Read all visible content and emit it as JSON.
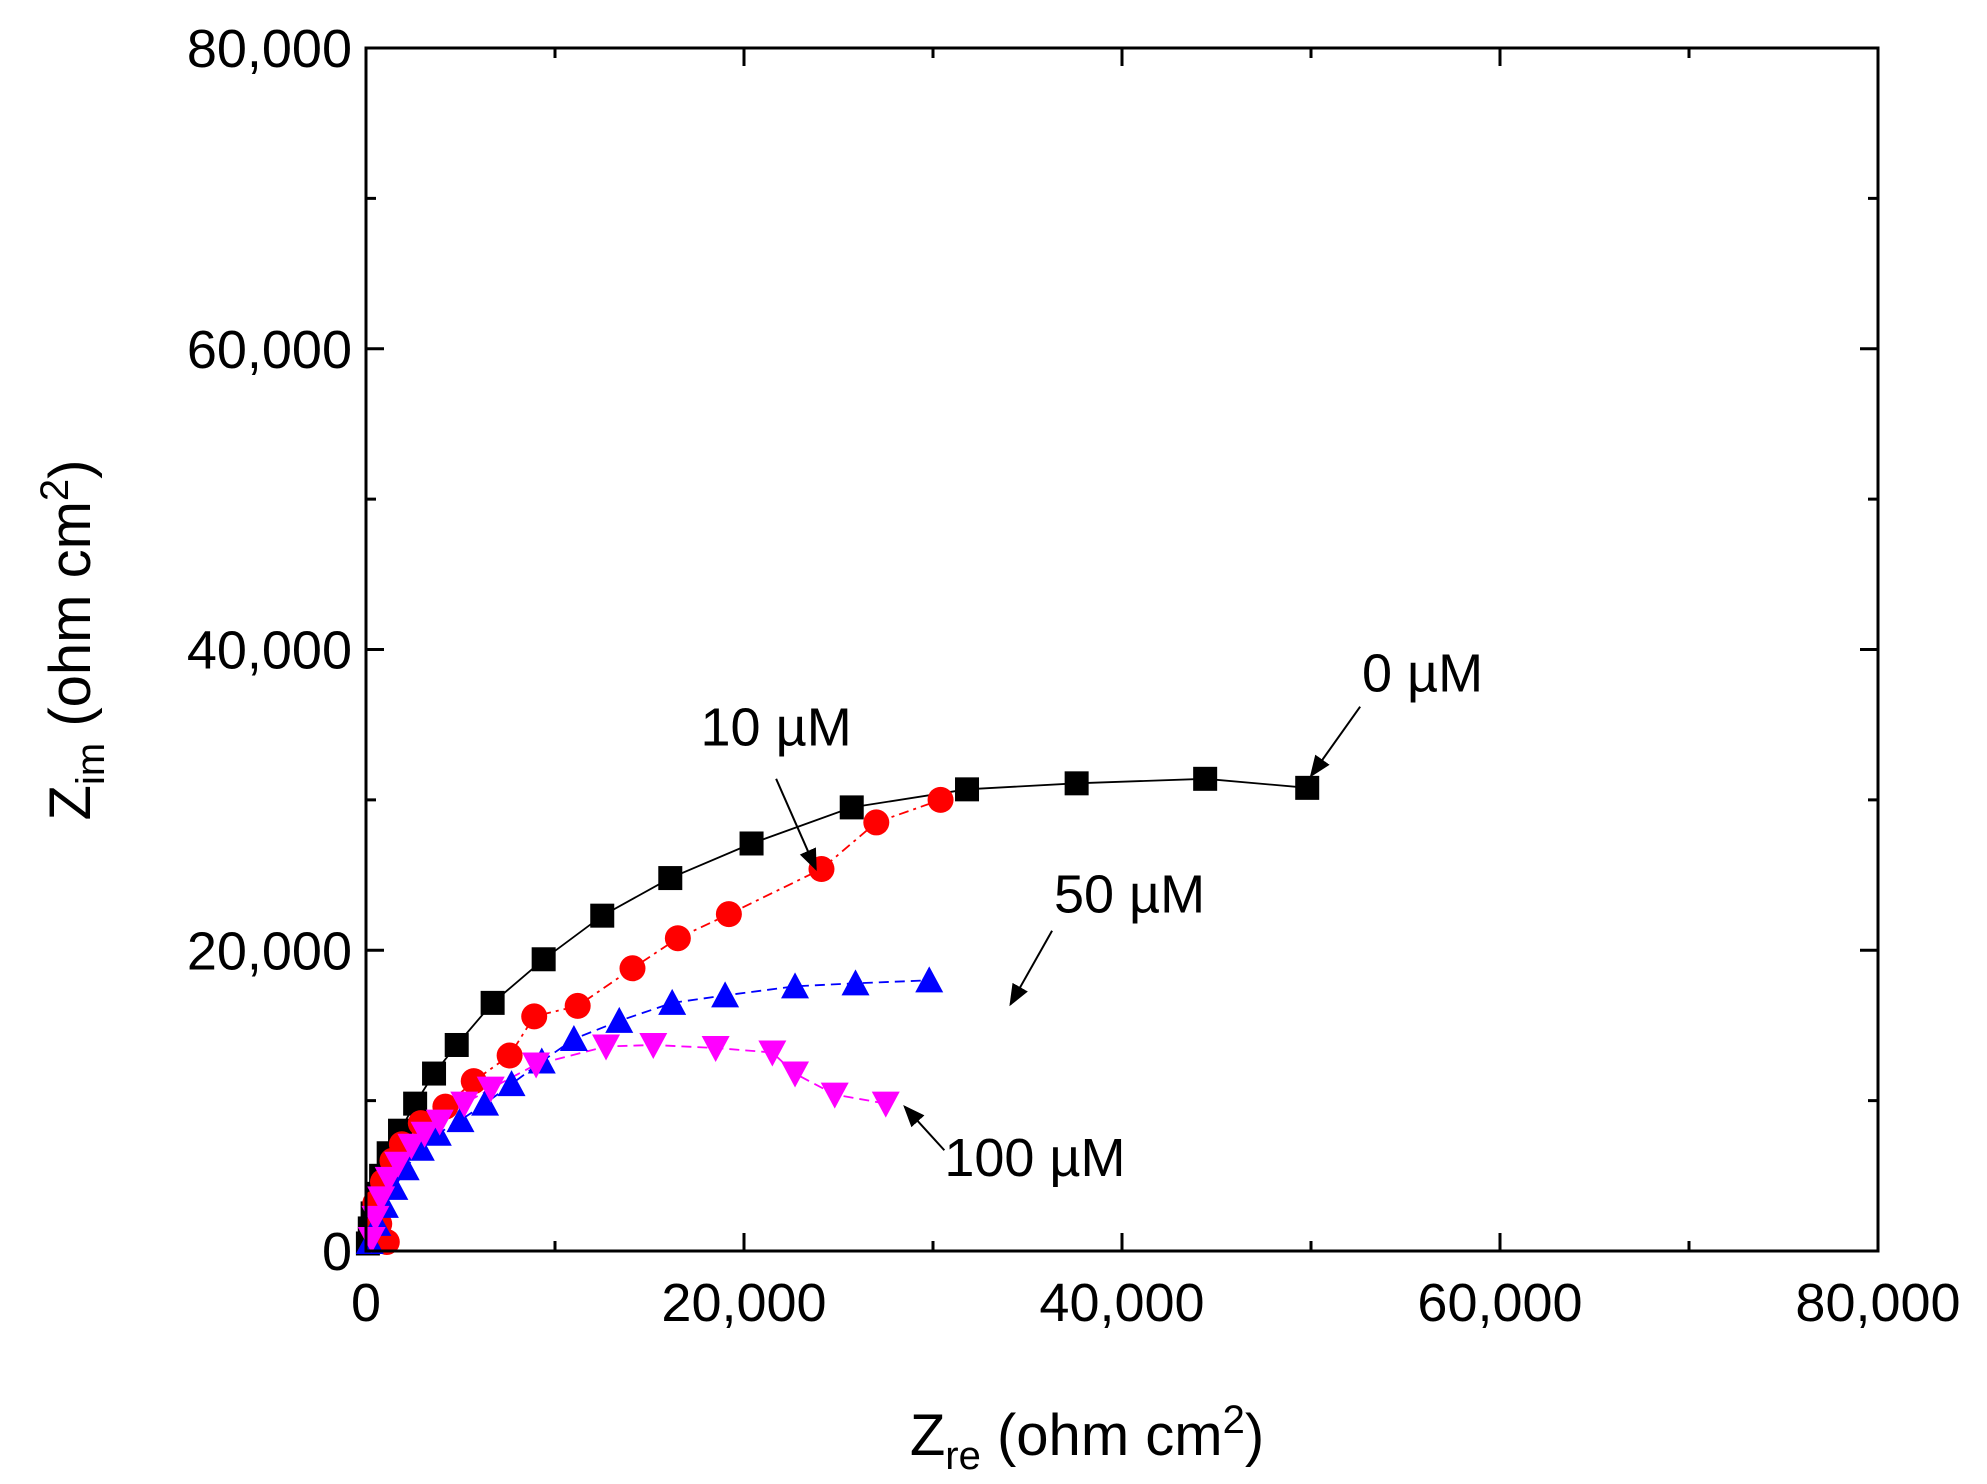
{
  "chart_data": {
    "type": "scatter",
    "xlabel": {
      "main": "Z",
      "sub": "re",
      "unit": " (ohm cm",
      "sup": "2",
      "close": ")"
    },
    "ylabel": {
      "main": "Z",
      "sub": "im",
      "unit": " (ohm cm",
      "sup": "2",
      "close": ")"
    },
    "xlim": [
      0,
      80000
    ],
    "ylim": [
      0,
      80000
    ],
    "xticks": [
      0,
      20000,
      40000,
      60000,
      80000
    ],
    "yticks": [
      0,
      20000,
      40000,
      60000,
      80000
    ],
    "xtick_labels": [
      "0",
      "20,000",
      "40,000",
      "60,000",
      "80,000"
    ],
    "ytick_labels": [
      "0",
      "20,000",
      "40,000",
      "60,000",
      "80,000"
    ],
    "grid": false,
    "series": [
      {
        "name": "0 µM",
        "color": "#000000",
        "marker": "square",
        "points": [
          [
            100,
            500
          ],
          [
            200,
            1500
          ],
          [
            350,
            2500
          ],
          [
            600,
            3800
          ],
          [
            800,
            5000
          ],
          [
            1200,
            6500
          ],
          [
            1800,
            8000
          ],
          [
            2600,
            9800
          ],
          [
            3600,
            11800
          ],
          [
            4800,
            13700
          ],
          [
            6700,
            16500
          ],
          [
            9400,
            19400
          ],
          [
            12500,
            22300
          ],
          [
            16100,
            24800
          ],
          [
            20400,
            27100
          ],
          [
            25700,
            29500
          ],
          [
            31800,
            30700
          ],
          [
            37600,
            31100
          ],
          [
            44400,
            31400
          ],
          [
            49800,
            30800
          ]
        ]
      },
      {
        "name": "10 µM",
        "color": "#ff0000",
        "marker": "circle",
        "points": [
          [
            1100,
            600
          ],
          [
            700,
            1800
          ],
          [
            500,
            3200
          ],
          [
            900,
            4600
          ],
          [
            1400,
            6000
          ],
          [
            1900,
            7100
          ],
          [
            2900,
            8500
          ],
          [
            4200,
            9600
          ],
          [
            5700,
            11300
          ],
          [
            7600,
            13000
          ],
          [
            8900,
            15600
          ],
          [
            11200,
            16300
          ],
          [
            14100,
            18800
          ],
          [
            16500,
            20800
          ],
          [
            19200,
            22400
          ],
          [
            24100,
            25400
          ],
          [
            27000,
            28500
          ],
          [
            30400,
            30000
          ]
        ]
      },
      {
        "name": "50 µM",
        "color": "#0000ff",
        "marker": "triangle-up",
        "points": [
          [
            200,
            600
          ],
          [
            600,
            1800
          ],
          [
            1000,
            3000
          ],
          [
            1500,
            4200
          ],
          [
            2100,
            5500
          ],
          [
            2900,
            6800
          ],
          [
            3800,
            7800
          ],
          [
            5000,
            8700
          ],
          [
            6300,
            9800
          ],
          [
            7700,
            11100
          ],
          [
            9300,
            12600
          ],
          [
            11000,
            14100
          ],
          [
            13400,
            15300
          ],
          [
            16200,
            16500
          ],
          [
            19000,
            17000
          ],
          [
            22700,
            17600
          ],
          [
            25900,
            17800
          ],
          [
            29800,
            18000
          ]
        ]
      },
      {
        "name": "100 µM",
        "color": "#ff00ff",
        "marker": "triangle-down",
        "points": [
          [
            300,
            800
          ],
          [
            500,
            2200
          ],
          [
            800,
            3500
          ],
          [
            1200,
            4800
          ],
          [
            1700,
            5800
          ],
          [
            2400,
            7000
          ],
          [
            3100,
            7800
          ],
          [
            3900,
            8600
          ],
          [
            5200,
            9800
          ],
          [
            6600,
            10800
          ],
          [
            9000,
            12400
          ],
          [
            12700,
            13600
          ],
          [
            15200,
            13700
          ],
          [
            18500,
            13500
          ],
          [
            21500,
            13200
          ],
          [
            22700,
            11800
          ],
          [
            24800,
            10400
          ],
          [
            27500,
            9800
          ]
        ]
      }
    ],
    "annotations": [
      {
        "text": "0 µM",
        "series": 0,
        "text_at": [
          52700,
          37200
        ],
        "arrow_from": [
          52600,
          36200
        ],
        "arrow_to": [
          50000,
          31600
        ]
      },
      {
        "text": "10 µM",
        "series": 1,
        "text_at": [
          17700,
          33600
        ],
        "arrow_from": [
          21700,
          31400
        ],
        "arrow_to": [
          23800,
          25400
        ]
      },
      {
        "text": "50 µM",
        "series": 2,
        "text_at": [
          36400,
          22500
        ],
        "arrow_from": [
          36300,
          21300
        ],
        "arrow_to": [
          34100,
          16400
        ]
      },
      {
        "text": "100 µM",
        "series": 3,
        "text_at": [
          30600,
          5000
        ],
        "arrow_from": [
          30600,
          6700
        ],
        "arrow_to": [
          28500,
          9600
        ]
      }
    ]
  }
}
